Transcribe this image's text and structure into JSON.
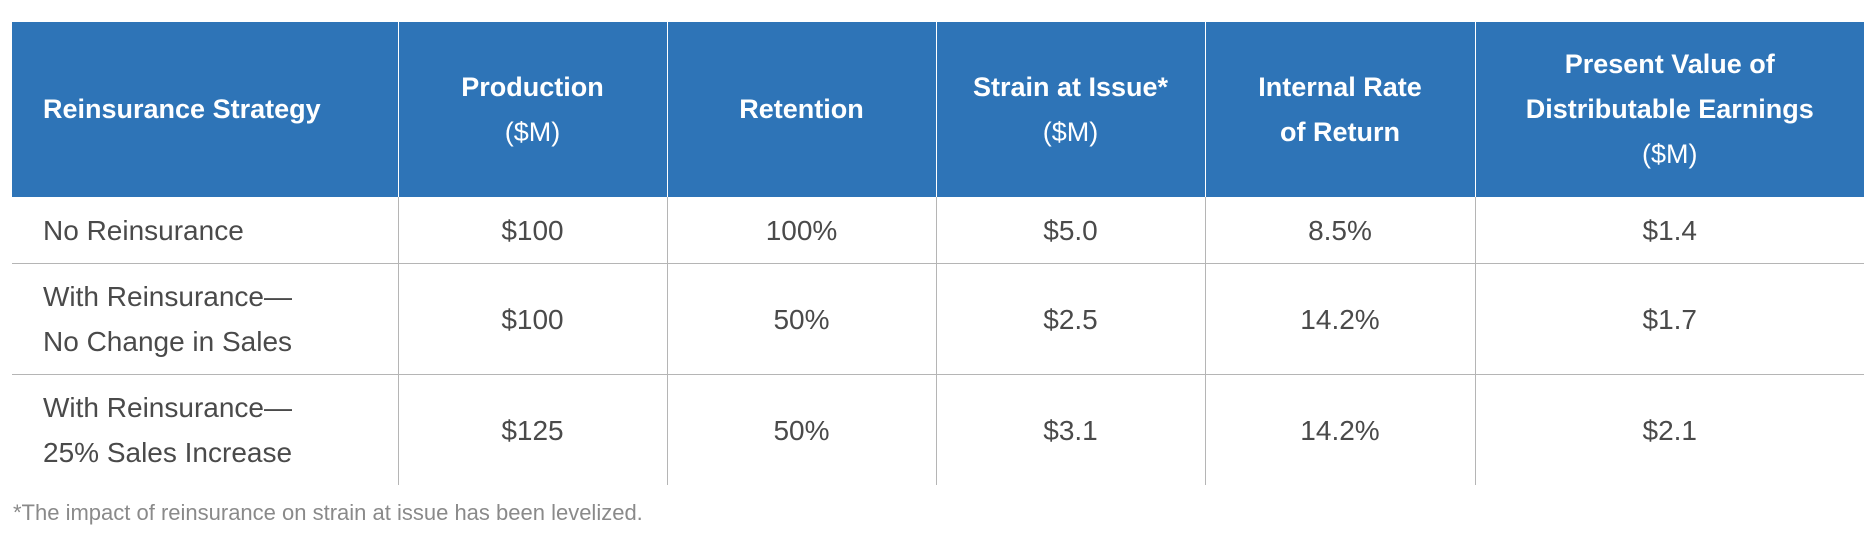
{
  "table": {
    "headers": [
      {
        "lines": [
          "Reinsurance Strategy"
        ],
        "sub": ""
      },
      {
        "lines": [
          "Production"
        ],
        "sub": "($M)"
      },
      {
        "lines": [
          "Retention"
        ],
        "sub": ""
      },
      {
        "lines": [
          "Strain at Issue*"
        ],
        "sub": "($M)"
      },
      {
        "lines": [
          "Internal Rate",
          "of Return"
        ],
        "sub": ""
      },
      {
        "lines": [
          "Present Value of",
          "Distributable Earnings"
        ],
        "sub": "($M)"
      }
    ],
    "rows": [
      {
        "strategy": [
          "No Reinsurance"
        ],
        "production": "$100",
        "retention": "100%",
        "strain": "$5.0",
        "irr": "8.5%",
        "pvde": "$1.4"
      },
      {
        "strategy": [
          "With Reinsurance—",
          "No Change in Sales"
        ],
        "production": "$100",
        "retention": "50%",
        "strain": "$2.5",
        "irr": "14.2%",
        "pvde": "$1.7"
      },
      {
        "strategy": [
          "With Reinsurance—",
          "25% Sales Increase"
        ],
        "production": "$125",
        "retention": "50%",
        "strain": "$3.1",
        "irr": "14.2%",
        "pvde": "$2.1"
      }
    ]
  },
  "footnote": "*The impact of reinsurance on strain at issue has been levelized.",
  "colors": {
    "header_bg": "#2e74b7",
    "header_text": "#ffffff",
    "body_text": "#4a4a4a",
    "grid": "#b5b5b5",
    "footnote_text": "#8a8a8a"
  }
}
